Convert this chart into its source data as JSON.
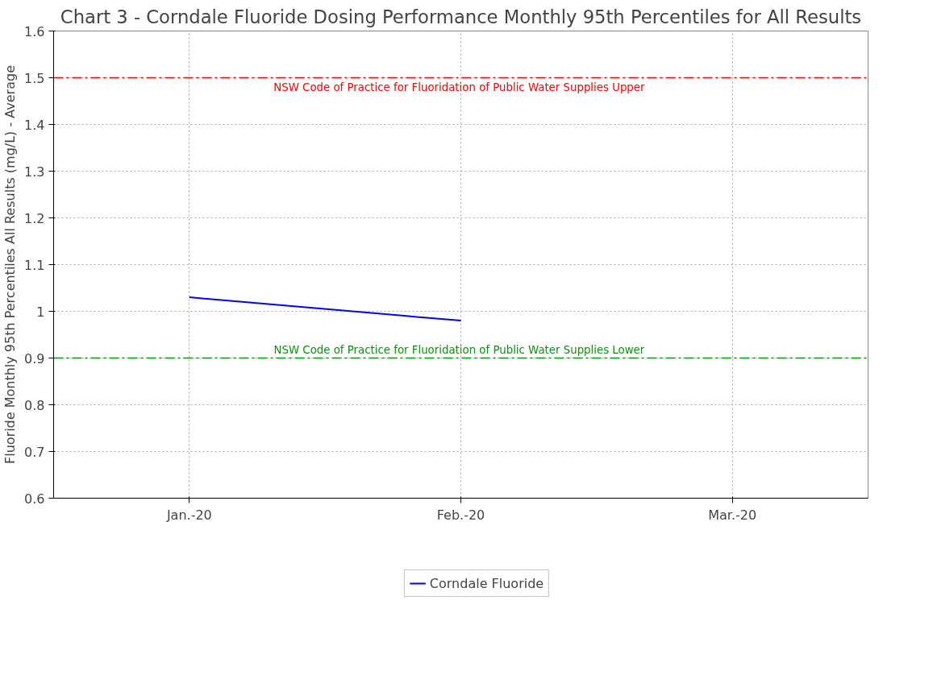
{
  "chart_data": {
    "type": "line",
    "title": "Chart 3 - Corndale Fluoride Dosing Performance Monthly 95th Percentiles for All Results",
    "ylabel": "Fluoride Monthly 95th Percentiles All Results (mg/L) - Average",
    "categories": [
      "Jan.-20",
      "Feb.-20",
      "Mar.-20"
    ],
    "series": [
      {
        "name": "Corndale Fluoride",
        "color": "#0000ff",
        "values": [
          1.03,
          0.98,
          null
        ]
      }
    ],
    "ylim": [
      0.6,
      1.6
    ],
    "yticks": [
      {
        "value": 0.6,
        "label": "0.6"
      },
      {
        "value": 0.7,
        "label": "0.7"
      },
      {
        "value": 0.8,
        "label": "0.8"
      },
      {
        "value": 0.9,
        "label": "0.9"
      },
      1,
      {
        "value": 1.1,
        "label": "1.1"
      },
      {
        "value": 1.2,
        "label": "1.2"
      },
      {
        "value": 1.3,
        "label": "1.3"
      },
      {
        "value": 1.4,
        "label": "1.4"
      },
      {
        "value": 1.5,
        "label": "1.5"
      },
      {
        "value": 1.6,
        "label": "1.6"
      }
    ],
    "ref_lines": [
      {
        "axis": "y",
        "value": 1.5,
        "label": "NSW Code of Practice for  Fluoridation of Public Water Supplies Upper",
        "color": "#ff0000",
        "line_style": "dashdot"
      },
      {
        "axis": "y",
        "value": 0.9,
        "label": "NSW Code of Practice for  Fluoridation of Public Water Supplies Lower",
        "color": "#109010",
        "line_style": "dashdot"
      }
    ],
    "grid": true,
    "legend": "bottom",
    "marker": "none",
    "line_style": "solid"
  }
}
